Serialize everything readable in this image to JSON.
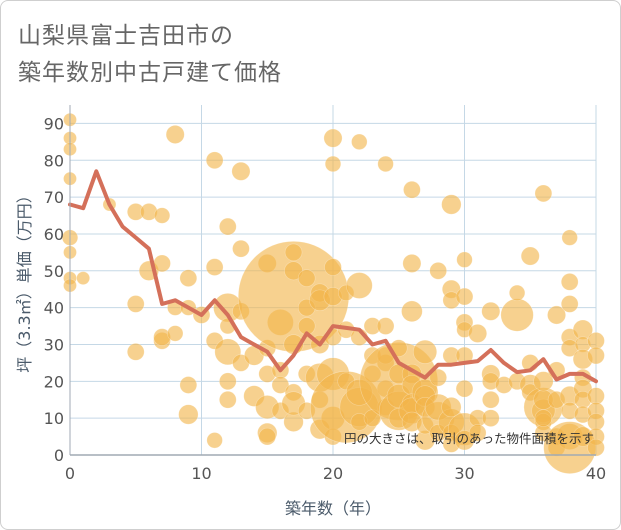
{
  "title_lines": [
    "山梨県富士吉田市の",
    "築年数別中古戸建て価格"
  ],
  "chart_data": {
    "type": "scatter",
    "title": "山梨県富士吉田市の築年数別中古戸建て価格",
    "xlabel": "築年数（年）",
    "ylabel": "坪（3.3㎡）単価（万円）",
    "xlim": [
      0,
      40
    ],
    "ylim": [
      0,
      95
    ],
    "x_ticks": [
      0,
      10,
      20,
      30,
      40
    ],
    "y_ticks": [
      0,
      10,
      20,
      30,
      40,
      50,
      60,
      70,
      80,
      90
    ],
    "grid": true,
    "note": "円の大きさは、取引のあった物件面積を示す",
    "colors": {
      "bubble": "#f2b54a",
      "line": "#d4705a",
      "grid": "#c5d8e6",
      "axis": "#a0aab4"
    },
    "series": [
      {
        "type": "line",
        "points": [
          [
            0,
            68
          ],
          [
            1,
            67
          ],
          [
            2,
            77
          ],
          [
            3,
            68
          ],
          [
            4,
            62
          ],
          [
            5,
            59
          ],
          [
            6,
            56
          ],
          [
            7,
            41
          ],
          [
            8,
            42
          ],
          [
            9,
            40
          ],
          [
            10,
            38
          ],
          [
            11,
            42
          ],
          [
            12,
            38
          ],
          [
            13,
            32
          ],
          [
            14,
            30
          ],
          [
            15,
            28
          ],
          [
            16,
            23
          ],
          [
            17,
            27
          ],
          [
            18,
            33
          ],
          [
            19,
            30
          ],
          [
            20,
            35
          ],
          [
            21,
            34.5
          ],
          [
            22,
            34
          ],
          [
            23,
            30
          ],
          [
            24,
            31
          ],
          [
            25,
            25
          ],
          [
            26,
            23
          ],
          [
            27,
            21
          ],
          [
            28,
            24.5
          ],
          [
            29,
            24.5
          ],
          [
            30,
            25
          ],
          [
            31,
            25.5
          ],
          [
            32,
            28.5
          ],
          [
            33,
            25
          ],
          [
            34,
            22.5
          ],
          [
            35,
            23
          ],
          [
            36,
            26
          ],
          [
            37,
            20.5
          ],
          [
            38,
            22
          ],
          [
            39,
            22
          ],
          [
            40,
            20
          ]
        ]
      },
      {
        "type": "bubble",
        "points": [
          [
            0,
            91,
            1
          ],
          [
            0,
            86,
            1
          ],
          [
            0,
            83,
            1
          ],
          [
            0,
            75,
            1
          ],
          [
            0,
            59,
            1.2
          ],
          [
            0,
            55,
            1
          ],
          [
            0,
            48,
            1
          ],
          [
            0,
            46,
            1
          ],
          [
            1,
            48,
            1
          ],
          [
            3,
            68,
            1
          ],
          [
            5,
            66,
            1.3
          ],
          [
            5,
            41,
            1.3
          ],
          [
            5,
            28,
            1.3
          ],
          [
            6,
            66,
            1.3
          ],
          [
            6,
            50,
            1.5
          ],
          [
            7,
            65,
            1.2
          ],
          [
            7,
            52,
            1.3
          ],
          [
            7,
            31,
            1.3
          ],
          [
            7,
            32,
            1.3
          ],
          [
            8,
            87,
            1.4
          ],
          [
            8,
            40,
            1.2
          ],
          [
            8,
            33,
            1.2
          ],
          [
            9,
            48,
            1.3
          ],
          [
            9,
            19,
            1.3
          ],
          [
            9,
            11,
            1.5
          ],
          [
            9,
            40,
            1.2
          ],
          [
            10,
            38,
            1.3
          ],
          [
            11,
            80,
            1.3
          ],
          [
            11,
            51,
            1.3
          ],
          [
            11,
            4,
            1.2
          ],
          [
            11,
            31,
            1.3
          ],
          [
            12,
            40,
            2.2
          ],
          [
            12,
            62,
            1.3
          ],
          [
            12,
            35,
            1.2
          ],
          [
            12,
            28,
            2
          ],
          [
            12,
            20,
            1.3
          ],
          [
            12,
            15,
            1.3
          ],
          [
            13,
            77,
            1.4
          ],
          [
            13,
            56,
            1.3
          ],
          [
            13,
            39,
            1.3
          ],
          [
            13,
            25,
            1.3
          ],
          [
            14,
            27,
            1.5
          ],
          [
            14,
            16,
            1.6
          ],
          [
            15,
            52,
            1.4
          ],
          [
            15,
            6,
            1.5
          ],
          [
            15,
            13,
            1.8
          ],
          [
            15,
            5,
            1.3
          ],
          [
            15,
            29,
            1.3
          ],
          [
            15,
            22,
            1.3
          ],
          [
            16,
            36,
            2
          ],
          [
            16,
            23,
            1.3
          ],
          [
            16,
            19,
            1.3
          ],
          [
            16,
            12,
            1.3
          ],
          [
            17,
            43,
            8.5
          ],
          [
            17,
            55,
            1.3
          ],
          [
            17,
            50,
            1.4
          ],
          [
            17,
            30,
            1.5
          ],
          [
            17,
            9,
            1.5
          ],
          [
            17,
            17,
            1.3
          ],
          [
            17,
            14,
            1.8
          ],
          [
            18,
            48,
            1.3
          ],
          [
            18,
            40,
            1.3
          ],
          [
            18,
            35,
            1.3
          ],
          [
            18,
            22,
            1.3
          ],
          [
            18,
            12,
            1.3
          ],
          [
            19,
            44,
            1.4
          ],
          [
            19,
            42,
            1.6
          ],
          [
            19,
            30,
            1.4
          ],
          [
            19,
            21,
            2.2
          ],
          [
            19,
            15,
            1.3
          ],
          [
            19,
            7,
            1.5
          ],
          [
            20,
            86,
            1.4
          ],
          [
            20,
            79,
            1.2
          ],
          [
            20,
            51,
            1.3
          ],
          [
            20,
            43,
            1.4
          ],
          [
            20,
            32,
            1.3
          ],
          [
            20,
            22,
            2.5
          ],
          [
            20,
            10,
            1.8
          ],
          [
            20,
            5,
            1.3
          ],
          [
            21,
            13,
            5.5
          ],
          [
            21,
            20,
            1.3
          ],
          [
            21,
            34,
            1.3
          ],
          [
            21,
            44,
            1.2
          ],
          [
            22,
            85,
            1.2
          ],
          [
            22,
            46,
            2
          ],
          [
            22,
            13,
            3
          ],
          [
            22,
            32,
            1.3
          ],
          [
            22,
            17,
            2
          ],
          [
            22,
            9,
            1.3
          ],
          [
            23,
            27,
            1.3
          ],
          [
            23,
            35,
            1.3
          ],
          [
            23,
            22,
            1.3
          ],
          [
            23,
            10,
            1.3
          ],
          [
            24,
            79,
            1.2
          ],
          [
            24,
            35,
            1.3
          ],
          [
            24,
            13,
            1.3
          ],
          [
            24,
            18,
            1.3
          ],
          [
            24,
            25,
            1.3
          ],
          [
            24,
            27,
            1.3
          ],
          [
            25,
            20,
            6
          ],
          [
            25,
            12,
            3
          ],
          [
            25,
            22,
            1.5
          ],
          [
            25,
            29,
            1.3
          ],
          [
            25,
            16,
            1.8
          ],
          [
            25,
            10,
            1.5
          ],
          [
            26,
            72,
            1.3
          ],
          [
            26,
            52,
            1.4
          ],
          [
            26,
            39,
            1.6
          ],
          [
            26,
            22,
            1.5
          ],
          [
            26,
            19,
            1.5
          ],
          [
            26,
            14,
            1.5
          ],
          [
            26,
            12,
            2
          ],
          [
            26,
            9,
            1.5
          ],
          [
            27,
            28,
            1.8
          ],
          [
            27,
            17,
            2
          ],
          [
            27,
            16,
            1.6
          ],
          [
            27,
            13,
            1.5
          ],
          [
            27,
            4,
            1.5
          ],
          [
            27,
            8,
            1.3
          ],
          [
            28,
            50,
            1.3
          ],
          [
            28,
            10,
            2.5
          ],
          [
            28,
            13,
            2
          ],
          [
            28,
            21,
            1.3
          ],
          [
            28,
            6,
            1.3
          ],
          [
            29,
            68,
            1.5
          ],
          [
            29,
            45,
            1.4
          ],
          [
            29,
            42,
            1.3
          ],
          [
            29,
            27,
            1.3
          ],
          [
            29,
            9,
            2
          ],
          [
            29,
            13,
            1.5
          ],
          [
            29,
            6,
            1.3
          ],
          [
            29,
            3,
            1.3
          ],
          [
            30,
            53,
            1.2
          ],
          [
            30,
            43,
            1.3
          ],
          [
            30,
            36,
            1.3
          ],
          [
            30,
            34,
            1.2
          ],
          [
            30,
            27,
            1.3
          ],
          [
            30,
            18,
            1.3
          ],
          [
            30,
            7,
            2.5
          ],
          [
            30,
            4,
            1.5
          ],
          [
            31,
            33,
            1.4
          ],
          [
            31,
            10,
            1.3
          ],
          [
            31,
            6,
            1.3
          ],
          [
            32,
            39,
            1.4
          ],
          [
            32,
            22,
            1.4
          ],
          [
            32,
            20,
            1.3
          ],
          [
            32,
            15,
            1.3
          ],
          [
            32,
            10,
            1.3
          ],
          [
            33,
            19,
            1.3
          ],
          [
            34,
            38,
            2.5
          ],
          [
            34,
            44,
            1.2
          ],
          [
            34,
            20,
            1.3
          ],
          [
            35,
            54,
            1.4
          ],
          [
            35,
            19,
            1.6
          ],
          [
            35,
            17,
            1.3
          ],
          [
            35,
            25,
            1.3
          ],
          [
            36,
            71,
            1.3
          ],
          [
            36,
            13,
            3
          ],
          [
            36,
            12,
            1.8
          ],
          [
            36,
            15,
            1.5
          ],
          [
            36,
            20,
            1.5
          ],
          [
            36,
            9,
            1.3
          ],
          [
            36,
            6,
            1.3
          ],
          [
            36,
            10,
            1.3
          ],
          [
            37,
            38,
            1.4
          ],
          [
            37,
            23,
            1.3
          ],
          [
            37,
            15,
            1.3
          ],
          [
            37,
            5,
            1.3
          ],
          [
            37,
            2,
            1.3
          ],
          [
            38,
            59,
            1.2
          ],
          [
            38,
            47,
            1.3
          ],
          [
            38,
            41,
            1.3
          ],
          [
            38,
            32,
            1.3
          ],
          [
            38,
            29,
            1.3
          ],
          [
            38,
            16,
            1.5
          ],
          [
            38,
            12,
            1.3
          ],
          [
            38,
            5,
            2
          ],
          [
            38,
            2,
            4
          ],
          [
            39,
            34,
            1.5
          ],
          [
            39,
            30,
            1.2
          ],
          [
            39,
            26,
            1.5
          ],
          [
            39,
            21,
            1.3
          ],
          [
            39,
            18,
            1.4
          ],
          [
            39,
            15,
            1.3
          ],
          [
            39,
            11,
            1.3
          ],
          [
            39,
            5,
            1.5
          ],
          [
            40,
            31,
            1.3
          ],
          [
            40,
            27,
            1.3
          ],
          [
            40,
            16,
            1.3
          ],
          [
            40,
            12,
            1.3
          ],
          [
            40,
            9,
            1.3
          ],
          [
            40,
            5,
            1.3
          ],
          [
            40,
            2,
            1.3
          ]
        ]
      }
    ]
  }
}
